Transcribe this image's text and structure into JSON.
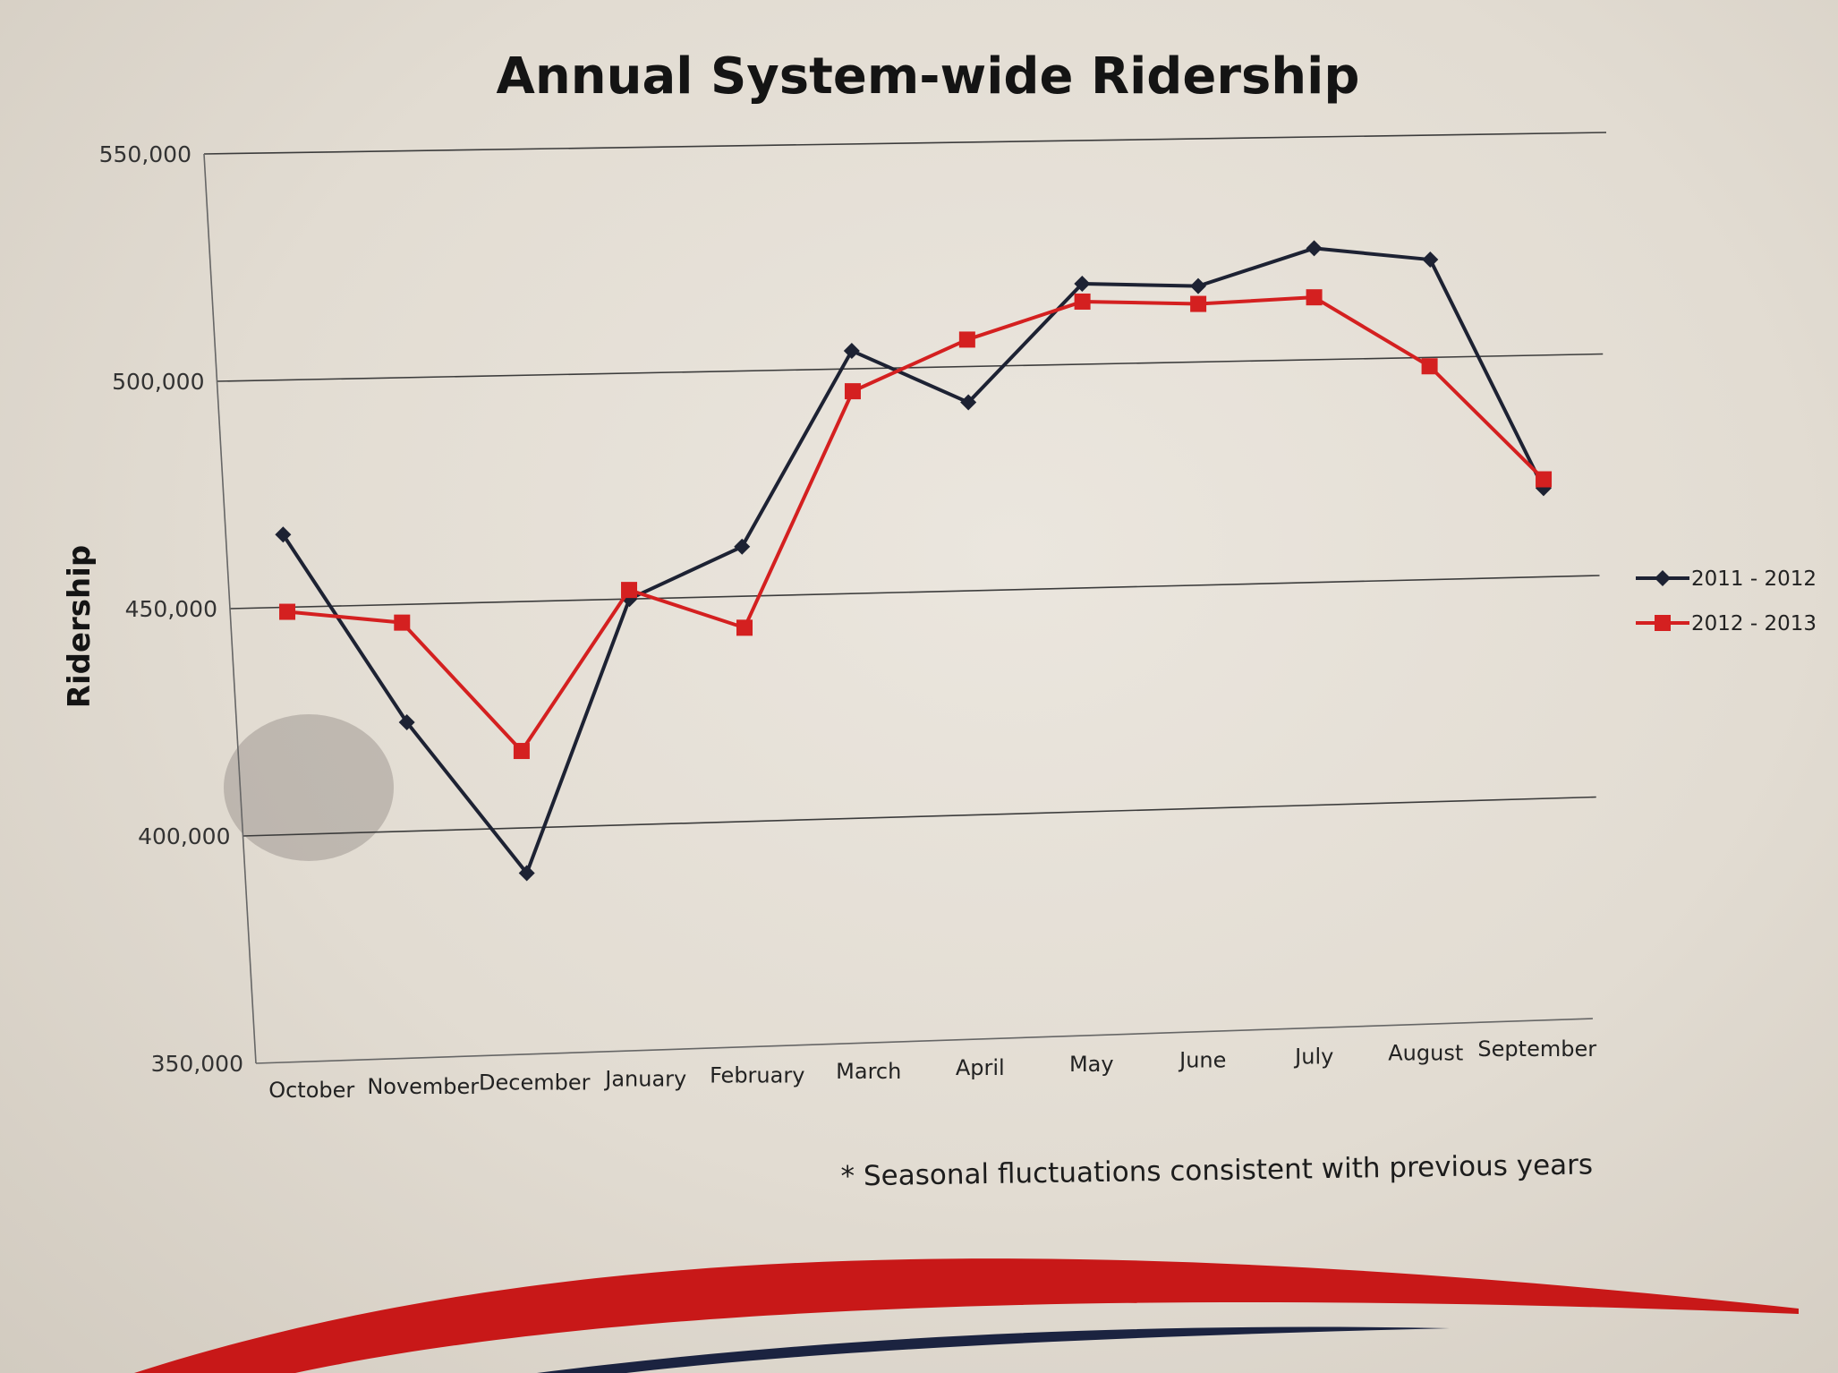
{
  "chart_data": {
    "type": "line",
    "title": "Annual System-wide Ridership",
    "ylabel": "Ridership",
    "xlabel": "",
    "categories": [
      "October",
      "November",
      "December",
      "January",
      "February",
      "March",
      "April",
      "May",
      "June",
      "July",
      "August",
      "September"
    ],
    "ylim": [
      350000,
      550000
    ],
    "yticks": [
      350000,
      400000,
      450000,
      500000,
      550000
    ],
    "ytick_labels": [
      "350,000",
      "400,000",
      "450,000",
      "500,000",
      "550,000"
    ],
    "grid": true,
    "legend_position": "right",
    "series": [
      {
        "name": "2011 - 2012",
        "color": "#1d2233",
        "marker": "diamond",
        "values": [
          466000,
          424000,
          390000,
          450000,
          461000,
          504000,
          492000,
          518000,
          517000,
          525000,
          522000,
          470000
        ]
      },
      {
        "name": "2012 - 2013",
        "color": "#d42020",
        "marker": "square",
        "values": [
          449000,
          446000,
          417000,
          452000,
          443000,
          495000,
          506000,
          514000,
          513000,
          514000,
          498000,
          472000
        ]
      }
    ],
    "annotation": "* Seasonal fluctuations consistent with previous years"
  },
  "colors": {
    "swoosh_red": "#c81818",
    "swoosh_navy": "#1b2340"
  }
}
